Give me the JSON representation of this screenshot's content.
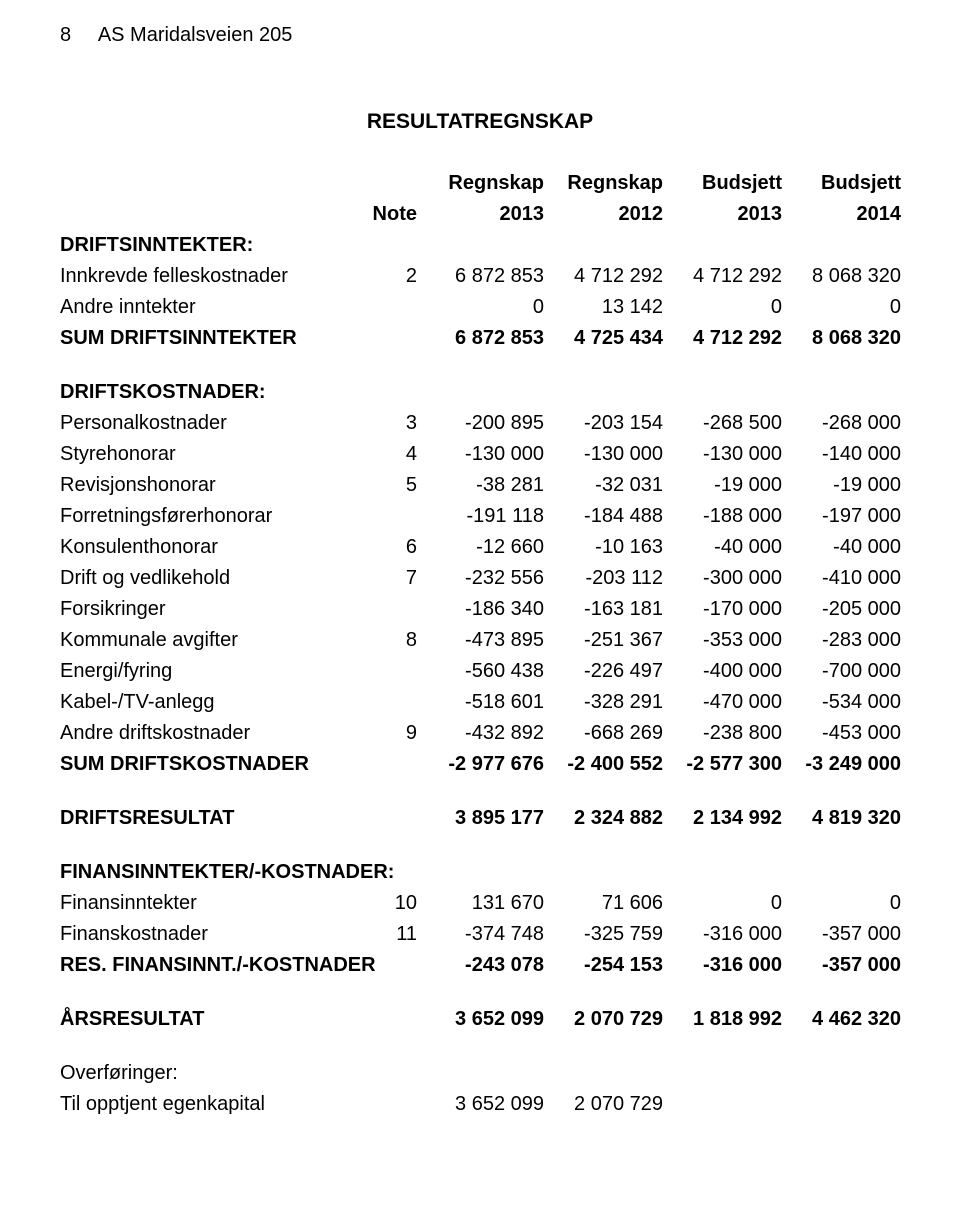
{
  "header": {
    "page_no": "8",
    "company": "AS Maridalsveien 205"
  },
  "title": "RESULTATREGNSKAP",
  "columns": {
    "note": "Note",
    "c1_top": "Regnskap",
    "c1_bot": "2013",
    "c2_top": "Regnskap",
    "c2_bot": "2012",
    "c3_top": "Budsjett",
    "c3_bot": "2013",
    "c4_top": "Budsjett",
    "c4_bot": "2014"
  },
  "sec": {
    "driftsinntekter": "DRIFTSINNTEKTER:",
    "driftskostnader": "DRIFTSKOSTNADER:",
    "finans": "FINANSINNTEKTER/-KOSTNADER:",
    "overforinger": "Overføringer:"
  },
  "rows": {
    "r0": {
      "label": "Innkrevde felleskostnader",
      "note": "2",
      "c1": "6 872 853",
      "c2": "4 712 292",
      "c3": "4 712 292",
      "c4": "8 068 320"
    },
    "r1": {
      "label": "Andre inntekter",
      "note": "",
      "c1": "0",
      "c2": "13 142",
      "c3": "0",
      "c4": "0"
    },
    "r2": {
      "label": "SUM DRIFTSINNTEKTER",
      "note": "",
      "c1": "6 872 853",
      "c2": "4 725 434",
      "c3": "4 712 292",
      "c4": "8 068 320"
    },
    "r3": {
      "label": "Personalkostnader",
      "note": "3",
      "c1": "-200 895",
      "c2": "-203 154",
      "c3": "-268 500",
      "c4": "-268 000"
    },
    "r4": {
      "label": "Styrehonorar",
      "note": "4",
      "c1": "-130 000",
      "c2": "-130 000",
      "c3": "-130 000",
      "c4": "-140 000"
    },
    "r5": {
      "label": "Revisjonshonorar",
      "note": "5",
      "c1": "-38 281",
      "c2": "-32 031",
      "c3": "-19 000",
      "c4": "-19 000"
    },
    "r6": {
      "label": "Forretningsførerhonorar",
      "note": "",
      "c1": "-191 118",
      "c2": "-184 488",
      "c3": "-188 000",
      "c4": "-197 000"
    },
    "r7": {
      "label": "Konsulenthonorar",
      "note": "6",
      "c1": "-12 660",
      "c2": "-10 163",
      "c3": "-40 000",
      "c4": "-40 000"
    },
    "r8": {
      "label": "Drift og vedlikehold",
      "note": "7",
      "c1": "-232 556",
      "c2": "-203 112",
      "c3": "-300 000",
      "c4": "-410 000"
    },
    "r9": {
      "label": "Forsikringer",
      "note": "",
      "c1": "-186 340",
      "c2": "-163 181",
      "c3": "-170 000",
      "c4": "-205 000"
    },
    "r10": {
      "label": "Kommunale avgifter",
      "note": "8",
      "c1": "-473 895",
      "c2": "-251 367",
      "c3": "-353 000",
      "c4": "-283 000"
    },
    "r11": {
      "label": "Energi/fyring",
      "note": "",
      "c1": "-560 438",
      "c2": "-226 497",
      "c3": "-400 000",
      "c4": "-700 000"
    },
    "r12": {
      "label": "Kabel-/TV-anlegg",
      "note": "",
      "c1": "-518 601",
      "c2": "-328 291",
      "c3": "-470 000",
      "c4": "-534 000"
    },
    "r13": {
      "label": "Andre driftskostnader",
      "note": "9",
      "c1": "-432 892",
      "c2": "-668 269",
      "c3": "-238 800",
      "c4": "-453 000"
    },
    "r14": {
      "label": "SUM DRIFTSKOSTNADER",
      "note": "",
      "c1": "-2 977 676",
      "c2": "-2 400 552",
      "c3": "-2 577 300",
      "c4": "-3 249 000"
    },
    "r15": {
      "label": "DRIFTSRESULTAT",
      "note": "",
      "c1": "3 895 177",
      "c2": "2 324 882",
      "c3": "2 134 992",
      "c4": "4 819 320"
    },
    "r16": {
      "label": "Finansinntekter",
      "note": "10",
      "c1": "131 670",
      "c2": "71 606",
      "c3": "0",
      "c4": "0"
    },
    "r17": {
      "label": "Finanskostnader",
      "note": "11",
      "c1": "-374 748",
      "c2": "-325 759",
      "c3": "-316 000",
      "c4": "-357 000"
    },
    "r18": {
      "label": "RES. FINANSINNT./-KOSTNADER",
      "note": "",
      "c1": "-243 078",
      "c2": "-254 153",
      "c3": "-316 000",
      "c4": "-357 000"
    },
    "r19": {
      "label": "ÅRSRESULTAT",
      "note": "",
      "c1": "3 652 099",
      "c2": "2 070 729",
      "c3": "1 818 992",
      "c4": "4 462 320"
    },
    "r20": {
      "label": "Til opptjent egenkapital",
      "note": "",
      "c1": "3 652 099",
      "c2": "2 070 729",
      "c3": "",
      "c4": ""
    }
  }
}
